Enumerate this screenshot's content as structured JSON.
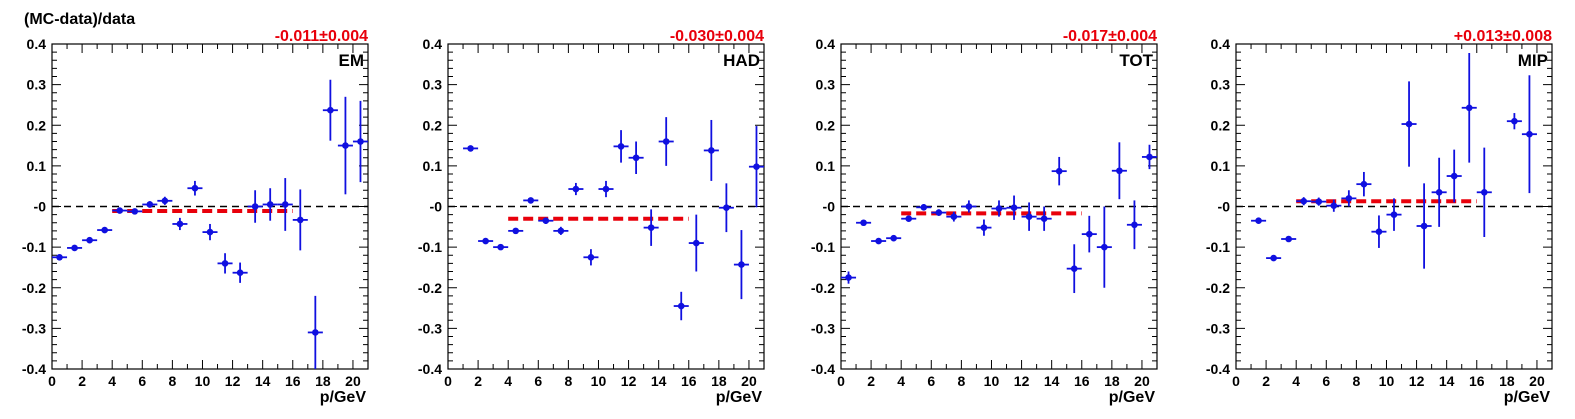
{
  "figure": {
    "y_axis_title": "(MC-data)/data"
  },
  "colors": {
    "points": "#1010e0",
    "fit": "#e8000b",
    "zero_line": "#000000",
    "frame": "#000000"
  },
  "chart_data": [
    {
      "type": "scatter",
      "panel_label": "EM",
      "fit_label": "-0.011±0.004",
      "xlabel": "p/GeV",
      "ylabel": "(MC-data)/data",
      "xlim": [
        0,
        21
      ],
      "ylim": [
        -0.4,
        0.4
      ],
      "x_ticks": [
        0,
        2,
        4,
        6,
        8,
        10,
        12,
        14,
        16,
        18,
        20
      ],
      "y_ticks": [
        -0.4,
        -0.3,
        -0.2,
        -0.1,
        0,
        0.1,
        0.2,
        0.3,
        0.4
      ],
      "y_tick_labels": [
        "-0.4",
        "-0.3",
        "-0.2",
        "-0.1",
        "-0",
        "0.1",
        "0.2",
        "0.3",
        "0.4"
      ],
      "fit": {
        "value": -0.011,
        "x_range": [
          4,
          16
        ]
      },
      "points": [
        {
          "x": 0.5,
          "y": -0.125,
          "err": 0.005
        },
        {
          "x": 1.5,
          "y": -0.102,
          "err": 0.005
        },
        {
          "x": 2.5,
          "y": -0.083,
          "err": 0.005
        },
        {
          "x": 3.5,
          "y": -0.058,
          "err": 0.006
        },
        {
          "x": 4.5,
          "y": -0.01,
          "err": 0.007
        },
        {
          "x": 5.5,
          "y": -0.012,
          "err": 0.007
        },
        {
          "x": 6.5,
          "y": 0.005,
          "err": 0.008
        },
        {
          "x": 7.5,
          "y": 0.014,
          "err": 0.01
        },
        {
          "x": 8.5,
          "y": -0.043,
          "err": 0.015
        },
        {
          "x": 9.5,
          "y": 0.045,
          "err": 0.018
        },
        {
          "x": 10.5,
          "y": -0.063,
          "err": 0.02
        },
        {
          "x": 11.5,
          "y": -0.14,
          "err": 0.025
        },
        {
          "x": 12.5,
          "y": -0.163,
          "err": 0.025
        },
        {
          "x": 13.5,
          "y": 0.0,
          "err": 0.04
        },
        {
          "x": 14.5,
          "y": 0.005,
          "err": 0.04
        },
        {
          "x": 15.5,
          "y": 0.005,
          "err": 0.065
        },
        {
          "x": 16.5,
          "y": -0.033,
          "err": 0.075
        },
        {
          "x": 17.5,
          "y": -0.31,
          "err": 0.09
        },
        {
          "x": 18.5,
          "y": 0.237,
          "err": 0.075
        },
        {
          "x": 19.5,
          "y": 0.15,
          "err": 0.12
        },
        {
          "x": 20.5,
          "y": 0.16,
          "err": 0.1
        }
      ]
    },
    {
      "type": "scatter",
      "panel_label": "HAD",
      "fit_label": "-0.030±0.004",
      "xlabel": "p/GeV",
      "xlim": [
        0,
        21
      ],
      "ylim": [
        -0.4,
        0.4
      ],
      "x_ticks": [
        0,
        2,
        4,
        6,
        8,
        10,
        12,
        14,
        16,
        18,
        20
      ],
      "y_ticks": [
        -0.4,
        -0.3,
        -0.2,
        -0.1,
        0,
        0.1,
        0.2,
        0.3,
        0.4
      ],
      "y_tick_labels": [
        "-0.4",
        "-0.3",
        "-0.2",
        "-0.1",
        "-0",
        "0.1",
        "0.2",
        "0.3",
        "0.4"
      ],
      "fit": {
        "value": -0.03,
        "x_range": [
          4,
          16
        ]
      },
      "points": [
        {
          "x": 1.5,
          "y": 0.143,
          "err": 0.005
        },
        {
          "x": 2.5,
          "y": -0.085,
          "err": 0.005
        },
        {
          "x": 3.5,
          "y": -0.1,
          "err": 0.005
        },
        {
          "x": 4.5,
          "y": -0.06,
          "err": 0.006
        },
        {
          "x": 5.5,
          "y": 0.015,
          "err": 0.007
        },
        {
          "x": 6.5,
          "y": -0.035,
          "err": 0.008
        },
        {
          "x": 7.5,
          "y": -0.06,
          "err": 0.01
        },
        {
          "x": 8.5,
          "y": 0.043,
          "err": 0.015
        },
        {
          "x": 9.5,
          "y": -0.125,
          "err": 0.02
        },
        {
          "x": 10.5,
          "y": 0.043,
          "err": 0.02
        },
        {
          "x": 11.5,
          "y": 0.148,
          "err": 0.04
        },
        {
          "x": 12.5,
          "y": 0.12,
          "err": 0.04
        },
        {
          "x": 13.5,
          "y": -0.052,
          "err": 0.045
        },
        {
          "x": 14.5,
          "y": 0.16,
          "err": 0.06
        },
        {
          "x": 15.5,
          "y": -0.245,
          "err": 0.035
        },
        {
          "x": 16.5,
          "y": -0.09,
          "err": 0.07
        },
        {
          "x": 17.5,
          "y": 0.138,
          "err": 0.075
        },
        {
          "x": 18.5,
          "y": -0.003,
          "err": 0.06
        },
        {
          "x": 19.5,
          "y": -0.143,
          "err": 0.085
        },
        {
          "x": 20.5,
          "y": 0.098,
          "err": 0.1
        }
      ]
    },
    {
      "type": "scatter",
      "panel_label": "TOT",
      "fit_label": "-0.017±0.004",
      "xlabel": "p/GeV",
      "xlim": [
        0,
        21
      ],
      "ylim": [
        -0.4,
        0.4
      ],
      "x_ticks": [
        0,
        2,
        4,
        6,
        8,
        10,
        12,
        14,
        16,
        18,
        20
      ],
      "y_ticks": [
        -0.4,
        -0.3,
        -0.2,
        -0.1,
        0,
        0.1,
        0.2,
        0.3,
        0.4
      ],
      "y_tick_labels": [
        "-0.4",
        "-0.3",
        "-0.2",
        "-0.1",
        "-0",
        "0.1",
        "0.2",
        "0.3",
        "0.4"
      ],
      "fit": {
        "value": -0.017,
        "x_range": [
          4,
          16
        ]
      },
      "points": [
        {
          "x": 0.5,
          "y": -0.175,
          "err": 0.015
        },
        {
          "x": 1.5,
          "y": -0.04,
          "err": 0.005
        },
        {
          "x": 2.5,
          "y": -0.085,
          "err": 0.005
        },
        {
          "x": 3.5,
          "y": -0.078,
          "err": 0.005
        },
        {
          "x": 4.5,
          "y": -0.03,
          "err": 0.007
        },
        {
          "x": 5.5,
          "y": -0.002,
          "err": 0.008
        },
        {
          "x": 6.5,
          "y": -0.015,
          "err": 0.008
        },
        {
          "x": 7.5,
          "y": -0.025,
          "err": 0.012
        },
        {
          "x": 8.5,
          "y": 0.0,
          "err": 0.015
        },
        {
          "x": 9.5,
          "y": -0.052,
          "err": 0.02
        },
        {
          "x": 10.5,
          "y": -0.005,
          "err": 0.02
        },
        {
          "x": 11.5,
          "y": -0.003,
          "err": 0.03
        },
        {
          "x": 12.5,
          "y": -0.025,
          "err": 0.035
        },
        {
          "x": 13.5,
          "y": -0.03,
          "err": 0.03
        },
        {
          "x": 14.5,
          "y": 0.087,
          "err": 0.035
        },
        {
          "x": 15.5,
          "y": -0.153,
          "err": 0.06
        },
        {
          "x": 16.5,
          "y": -0.068,
          "err": 0.045
        },
        {
          "x": 17.5,
          "y": -0.1,
          "err": 0.1
        },
        {
          "x": 18.5,
          "y": 0.088,
          "err": 0.07
        },
        {
          "x": 19.5,
          "y": -0.045,
          "err": 0.06
        },
        {
          "x": 20.5,
          "y": 0.122,
          "err": 0.03
        }
      ]
    },
    {
      "type": "scatter",
      "panel_label": "MIP",
      "fit_label": "+0.013±0.008",
      "xlabel": "p/GeV",
      "xlim": [
        0,
        21
      ],
      "ylim": [
        -0.4,
        0.4
      ],
      "x_ticks": [
        0,
        2,
        4,
        6,
        8,
        10,
        12,
        14,
        16,
        18,
        20
      ],
      "y_ticks": [
        -0.4,
        -0.3,
        -0.2,
        -0.1,
        0,
        0.1,
        0.2,
        0.3,
        0.4
      ],
      "y_tick_labels": [
        "-0.4",
        "-0.3",
        "-0.2",
        "-0.1",
        "-0",
        "0.1",
        "0.2",
        "0.3",
        "0.4"
      ],
      "fit": {
        "value": 0.013,
        "x_range": [
          4,
          16
        ]
      },
      "points": [
        {
          "x": 1.5,
          "y": -0.035,
          "err": 0.005
        },
        {
          "x": 2.5,
          "y": -0.127,
          "err": 0.005
        },
        {
          "x": 3.5,
          "y": -0.08,
          "err": 0.005
        },
        {
          "x": 4.5,
          "y": 0.013,
          "err": 0.01
        },
        {
          "x": 5.5,
          "y": 0.012,
          "err": 0.01
        },
        {
          "x": 6.5,
          "y": 0.002,
          "err": 0.015
        },
        {
          "x": 7.5,
          "y": 0.02,
          "err": 0.02
        },
        {
          "x": 8.5,
          "y": 0.055,
          "err": 0.03
        },
        {
          "x": 9.5,
          "y": -0.062,
          "err": 0.04
        },
        {
          "x": 10.5,
          "y": -0.02,
          "err": 0.04
        },
        {
          "x": 11.5,
          "y": 0.203,
          "err": 0.105
        },
        {
          "x": 12.5,
          "y": -0.048,
          "err": 0.105
        },
        {
          "x": 13.5,
          "y": 0.035,
          "err": 0.085
        },
        {
          "x": 14.5,
          "y": 0.075,
          "err": 0.065
        },
        {
          "x": 15.5,
          "y": 0.243,
          "err": 0.135
        },
        {
          "x": 16.5,
          "y": 0.035,
          "err": 0.11
        },
        {
          "x": 18.5,
          "y": 0.21,
          "err": 0.02
        },
        {
          "x": 19.5,
          "y": 0.178,
          "err": 0.145
        }
      ]
    }
  ]
}
